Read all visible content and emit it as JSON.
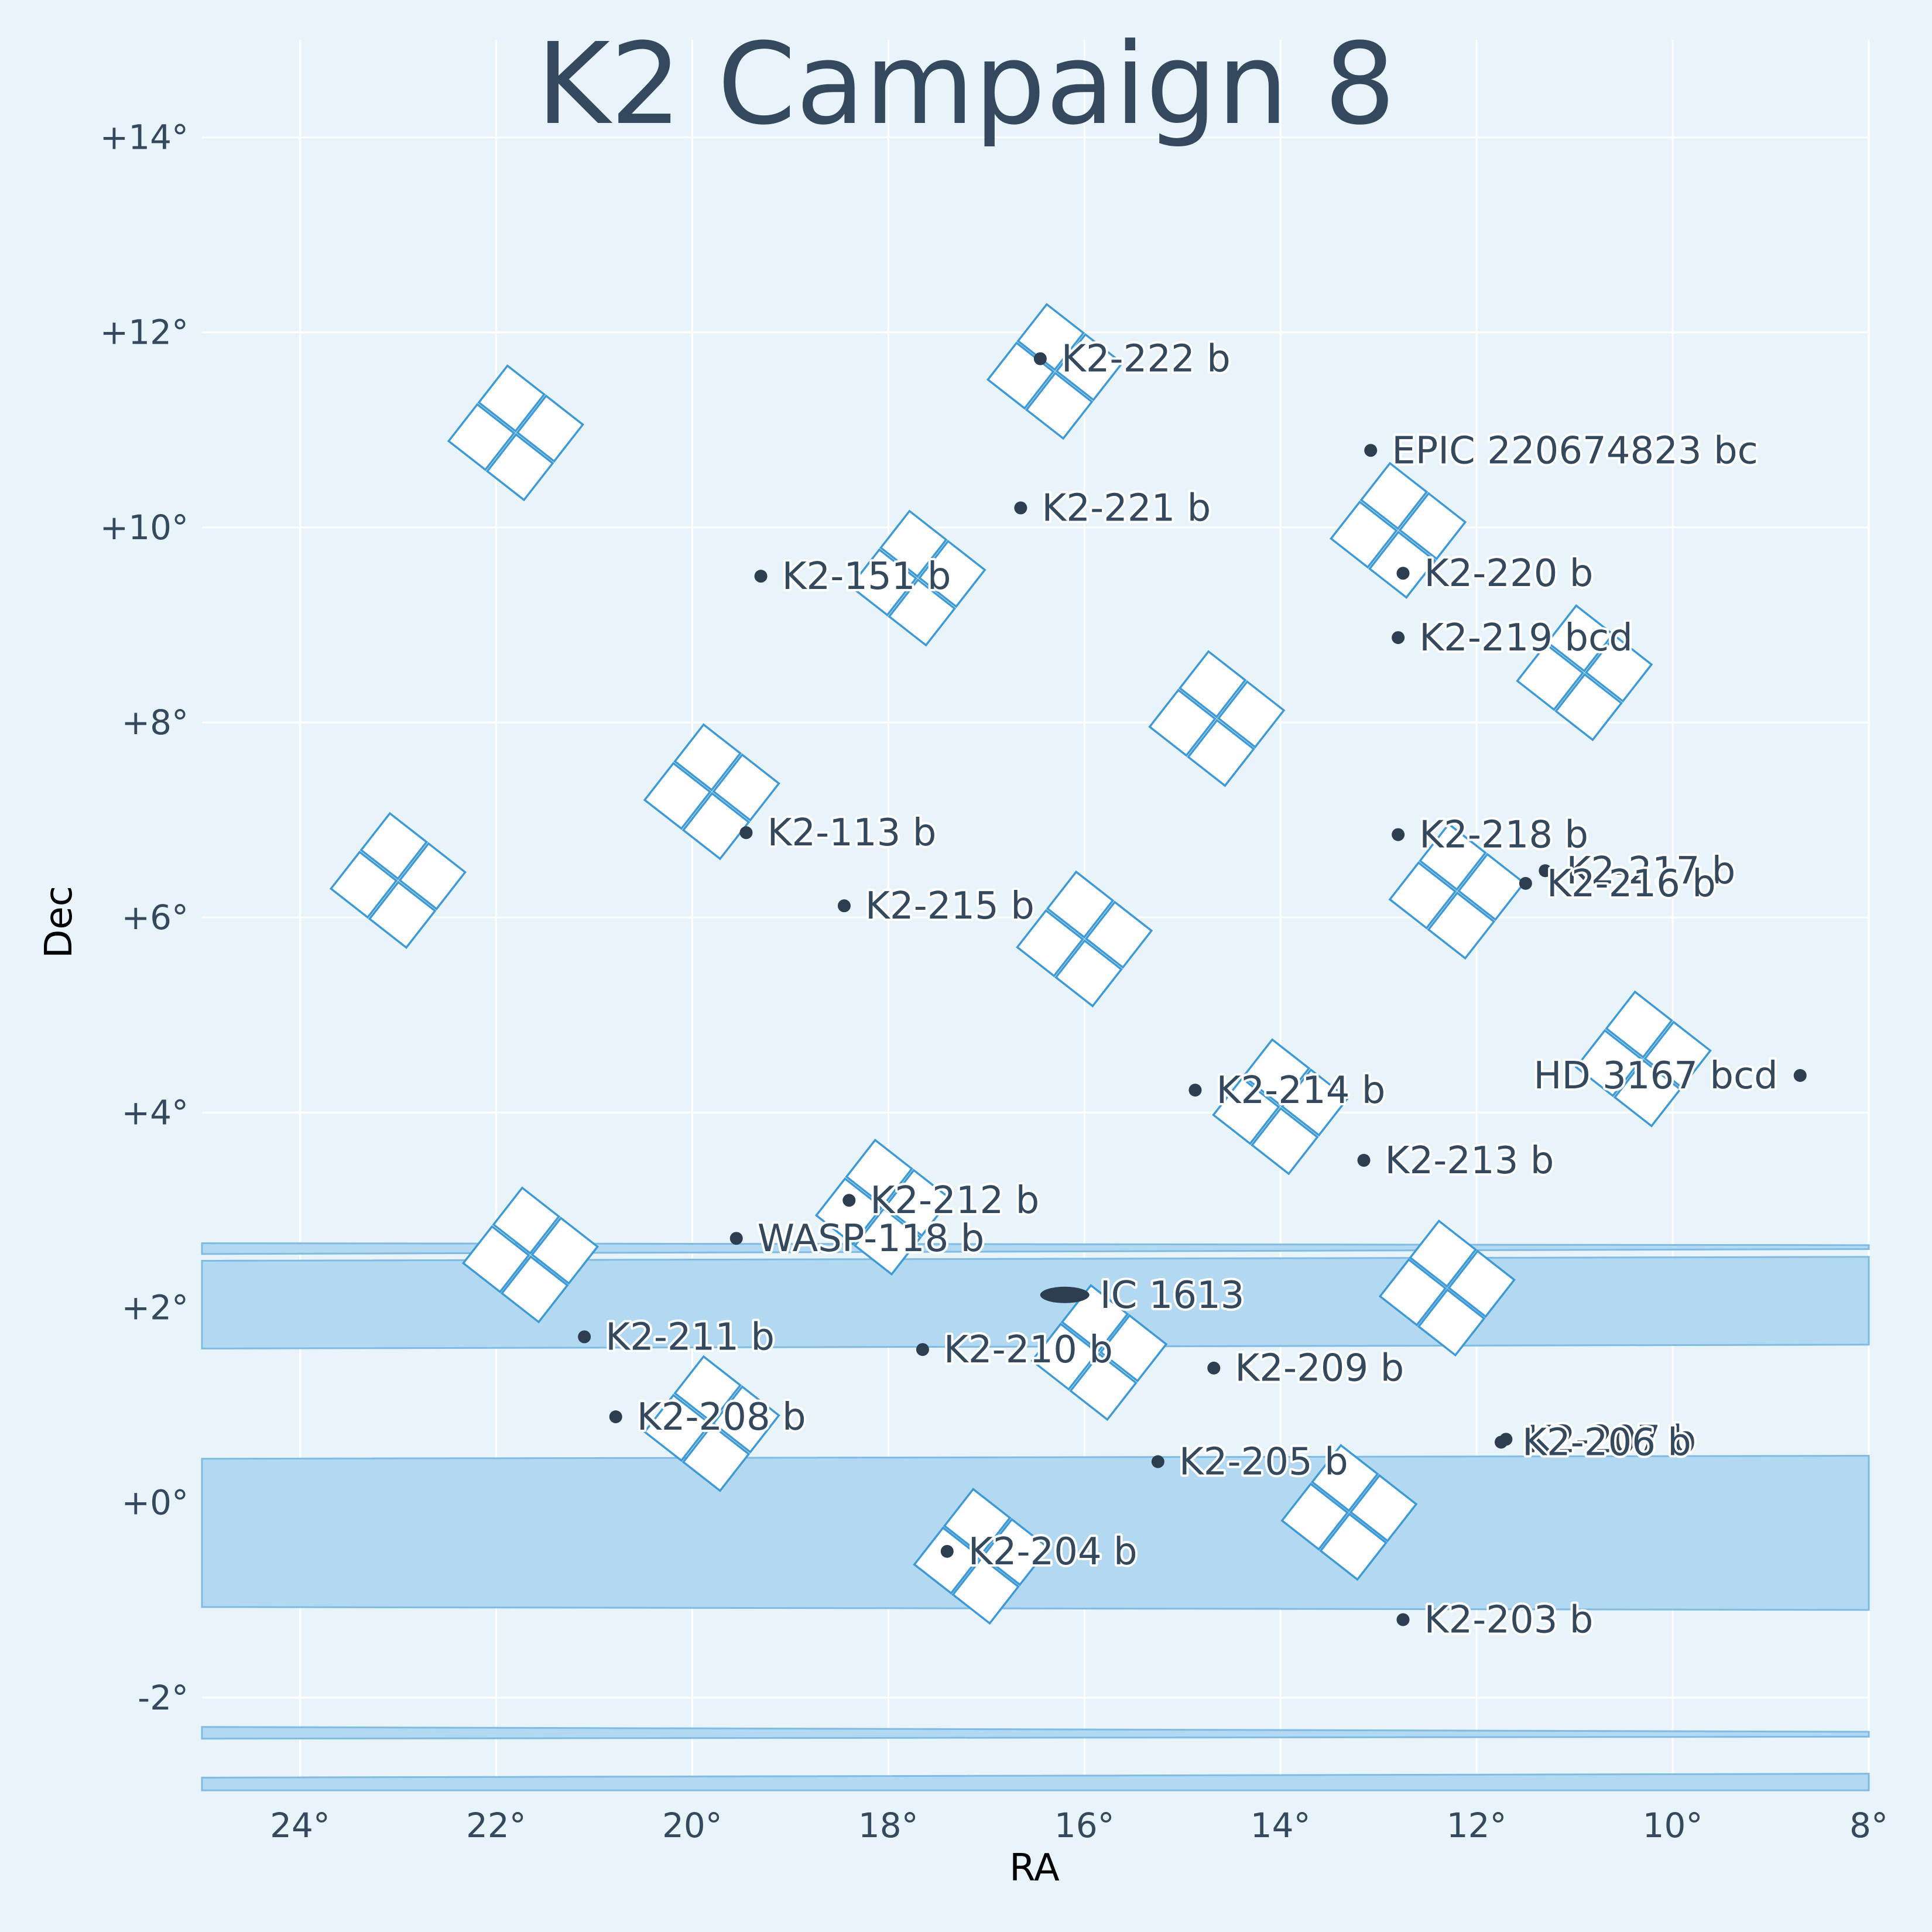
{
  "chart_data": {
    "type": "scatter",
    "title": "K2 Campaign 8",
    "xlabel": "RA",
    "ylabel": "Dec",
    "xlim": [
      25.0,
      8.0
    ],
    "ylim": [
      -2.95,
      15.0
    ],
    "x_ticks": [
      {
        "value": 24,
        "label": "24°"
      },
      {
        "value": 22,
        "label": "22°"
      },
      {
        "value": 20,
        "label": "20°"
      },
      {
        "value": 18,
        "label": "18°"
      },
      {
        "value": 16,
        "label": "16°"
      },
      {
        "value": 14,
        "label": "14°"
      },
      {
        "value": 12,
        "label": "12°"
      },
      {
        "value": 10,
        "label": "10°"
      },
      {
        "value": 8,
        "label": "8°"
      }
    ],
    "y_ticks": [
      {
        "value": 14,
        "label": "+14°"
      },
      {
        "value": 12,
        "label": "+12°"
      },
      {
        "value": 10,
        "label": "+10°"
      },
      {
        "value": 8,
        "label": "+8°"
      },
      {
        "value": 6,
        "label": "+6°"
      },
      {
        "value": 4,
        "label": "+4°"
      },
      {
        "value": 2,
        "label": "+2°"
      },
      {
        "value": 0,
        "label": "+0°"
      },
      {
        "value": -2,
        "label": "-2°"
      }
    ],
    "grid": true,
    "colors": {
      "background": "#e8f3fa",
      "text": "#34495e",
      "ccd_fill": "#ffffff",
      "ccd_edge": "#3d9ad6",
      "band_fill": "#b3d9f2",
      "band_edge": "#7fbbe3",
      "marker": "#2c3e50"
    },
    "field_rotation_deg": -52,
    "module_half_size_deg": 0.5,
    "modules": [
      {
        "ra": 21.8,
        "dec": 10.97
      },
      {
        "ra": 16.3,
        "dec": 11.6
      },
      {
        "ra": 17.7,
        "dec": 9.48
      },
      {
        "ra": 12.8,
        "dec": 9.97
      },
      {
        "ra": 19.8,
        "dec": 7.29
      },
      {
        "ra": 14.65,
        "dec": 8.04
      },
      {
        "ra": 10.9,
        "dec": 8.51
      },
      {
        "ra": 23.0,
        "dec": 6.38
      },
      {
        "ra": 16.0,
        "dec": 5.78
      },
      {
        "ra": 12.2,
        "dec": 6.27
      },
      {
        "ra": 14.0,
        "dec": 4.06
      },
      {
        "ra": 10.3,
        "dec": 4.55
      },
      {
        "ra": 18.05,
        "dec": 3.03
      },
      {
        "ra": 21.65,
        "dec": 2.54
      },
      {
        "ra": 12.3,
        "dec": 2.2
      },
      {
        "ra": 15.85,
        "dec": 1.54
      },
      {
        "ra": 19.8,
        "dec": 0.81
      },
      {
        "ra": 17.05,
        "dec": -0.55
      },
      {
        "ra": 13.3,
        "dec": -0.1
      }
    ],
    "bands": [
      {
        "ra_left": 25.0,
        "ra_right": 8.0,
        "dec_left": [
          2.55,
          2.66
        ],
        "dec_right": [
          2.6,
          2.64
        ]
      },
      {
        "ra_left": 25.0,
        "ra_right": 8.0,
        "dec_left": [
          1.58,
          2.48
        ],
        "dec_right": [
          1.62,
          2.52
        ]
      },
      {
        "ra_left": 25.0,
        "ra_right": 8.0,
        "dec_left": [
          -1.07,
          0.45
        ],
        "dec_right": [
          -1.1,
          0.48
        ]
      },
      {
        "ra_left": 25.0,
        "ra_right": 8.0,
        "dec_left": [
          -2.42,
          -2.3
        ],
        "dec_right": [
          -2.4,
          -2.35
        ]
      },
      {
        "ra_left": 25.0,
        "ra_right": 8.0,
        "dec_left": [
          -2.95,
          -2.82
        ],
        "dec_right": [
          -2.95,
          -2.78
        ]
      }
    ],
    "galaxy": {
      "name": "IC 1613",
      "ra": 16.2,
      "dec": 2.13
    },
    "planets": [
      {
        "name": "K2-222 b",
        "ra": 16.45,
        "dec": 11.73
      },
      {
        "name": "EPIC 220674823 bc",
        "ra": 13.08,
        "dec": 10.79
      },
      {
        "name": "K2-221 b",
        "ra": 16.65,
        "dec": 10.2
      },
      {
        "name": "K2-151 b",
        "ra": 19.3,
        "dec": 9.5
      },
      {
        "name": "K2-220 b",
        "ra": 12.75,
        "dec": 9.53
      },
      {
        "name": "K2-219 bcd",
        "ra": 12.8,
        "dec": 8.87
      },
      {
        "name": "K2-113 b",
        "ra": 19.45,
        "dec": 6.87
      },
      {
        "name": "K2-218 b",
        "ra": 12.8,
        "dec": 6.85
      },
      {
        "name": "K2-217 b",
        "ra": 11.3,
        "dec": 6.48
      },
      {
        "name": "K2-216 b",
        "ra": 11.5,
        "dec": 6.35
      },
      {
        "name": "K2-215 b",
        "ra": 18.45,
        "dec": 6.12
      },
      {
        "name": "HD 3167 bcd",
        "ra": 8.7,
        "dec": 4.38
      },
      {
        "name": "K2-214 b",
        "ra": 14.87,
        "dec": 4.23
      },
      {
        "name": "K2-213 b",
        "ra": 13.15,
        "dec": 3.51
      },
      {
        "name": "K2-212 b",
        "ra": 18.4,
        "dec": 3.1
      },
      {
        "name": "WASP-118 b",
        "ra": 19.55,
        "dec": 2.71
      },
      {
        "name": "K2-211 b",
        "ra": 21.1,
        "dec": 1.7
      },
      {
        "name": "K2-210 b",
        "ra": 17.65,
        "dec": 1.57
      },
      {
        "name": "K2-209 b",
        "ra": 14.68,
        "dec": 1.38
      },
      {
        "name": "K2-208 b",
        "ra": 20.78,
        "dec": 0.88
      },
      {
        "name": "K2-207 b",
        "ra": 11.7,
        "dec": 0.65
      },
      {
        "name": "K2-206 b",
        "ra": 11.75,
        "dec": 0.62
      },
      {
        "name": "K2-205 b",
        "ra": 15.25,
        "dec": 0.42
      },
      {
        "name": "K2-204 b",
        "ra": 17.4,
        "dec": -0.5
      },
      {
        "name": "K2-203 b",
        "ra": 12.75,
        "dec": -1.2
      }
    ]
  }
}
